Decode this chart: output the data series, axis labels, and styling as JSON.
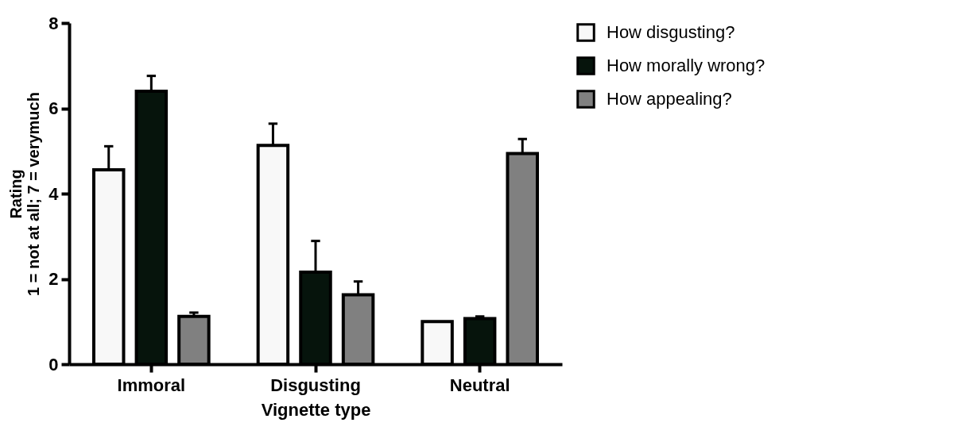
{
  "chart_data": {
    "type": "bar",
    "xlabel": "Vignette type",
    "ylabel": "Rating\n1 = not at all; 7 = verymuch",
    "categories": [
      "Immoral",
      "Disgusting",
      "Neutral"
    ],
    "series": [
      {
        "name": "How disgusting?",
        "color": "#f8f8f8",
        "values": [
          4.56,
          5.13,
          1.0
        ],
        "errors": [
          [
            4.56,
            5.11
          ],
          [
            5.13,
            5.64
          ],
          null
        ]
      },
      {
        "name": "How morally wrong?",
        "color": "#06140c",
        "values": [
          6.4,
          2.16,
          1.07
        ],
        "errors": [
          [
            6.4,
            6.76
          ],
          [
            2.16,
            2.89
          ],
          [
            1.07,
            1.12
          ]
        ]
      },
      {
        "name": "How appealing?",
        "color": "#808080",
        "values": [
          1.12,
          1.63,
          4.94
        ],
        "errors": [
          [
            1.12,
            1.21
          ],
          [
            1.63,
            1.94
          ],
          [
            4.94,
            5.28
          ]
        ]
      }
    ],
    "ylim": [
      0,
      8
    ],
    "yticks": [
      0,
      2,
      4,
      6,
      8
    ],
    "grid": false,
    "legend": "top right"
  }
}
